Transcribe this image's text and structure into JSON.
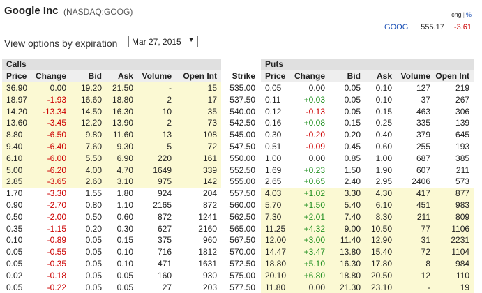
{
  "header": {
    "title": "Google Inc",
    "exchange_symbol": "(NASDAQ:GOOG)",
    "chg_label": "chg",
    "separator": "|",
    "pct_label": "%",
    "quote_symbol": "GOOG",
    "last_price": "555.17",
    "change": "-3.61"
  },
  "expiry": {
    "label": "View options by expiration",
    "selected": "Mar 27, 2015"
  },
  "table": {
    "calls_label": "Calls",
    "puts_label": "Puts",
    "columns": {
      "price": "Price",
      "change": "Change",
      "bid": "Bid",
      "ask": "Ask",
      "volume": "Volume",
      "open_int": "Open Int",
      "strike": "Strike"
    },
    "rows": [
      {
        "c_price": "36.90",
        "c_change": "0.00",
        "c_bid": "19.20",
        "c_ask": "21.50",
        "c_vol": "-",
        "c_oi": "15",
        "strike": "535.00",
        "p_price": "0.05",
        "p_change": "0.00",
        "p_bid": "0.05",
        "p_ask": "0.10",
        "p_vol": "127",
        "p_oi": "219"
      },
      {
        "c_price": "18.97",
        "c_change": "-1.93",
        "c_bid": "16.60",
        "c_ask": "18.80",
        "c_vol": "2",
        "c_oi": "17",
        "strike": "537.50",
        "p_price": "0.11",
        "p_change": "+0.03",
        "p_bid": "0.05",
        "p_ask": "0.10",
        "p_vol": "37",
        "p_oi": "267"
      },
      {
        "c_price": "14.20",
        "c_change": "-13.34",
        "c_bid": "14.50",
        "c_ask": "16.30",
        "c_vol": "10",
        "c_oi": "35",
        "strike": "540.00",
        "p_price": "0.12",
        "p_change": "-0.13",
        "p_bid": "0.05",
        "p_ask": "0.15",
        "p_vol": "463",
        "p_oi": "306"
      },
      {
        "c_price": "13.60",
        "c_change": "-3.45",
        "c_bid": "12.20",
        "c_ask": "13.90",
        "c_vol": "2",
        "c_oi": "73",
        "strike": "542.50",
        "p_price": "0.16",
        "p_change": "+0.08",
        "p_bid": "0.15",
        "p_ask": "0.25",
        "p_vol": "335",
        "p_oi": "139"
      },
      {
        "c_price": "8.80",
        "c_change": "-6.50",
        "c_bid": "9.80",
        "c_ask": "11.60",
        "c_vol": "13",
        "c_oi": "108",
        "strike": "545.00",
        "p_price": "0.30",
        "p_change": "-0.20",
        "p_bid": "0.20",
        "p_ask": "0.40",
        "p_vol": "379",
        "p_oi": "645"
      },
      {
        "c_price": "9.40",
        "c_change": "-6.40",
        "c_bid": "7.60",
        "c_ask": "9.30",
        "c_vol": "5",
        "c_oi": "72",
        "strike": "547.50",
        "p_price": "0.51",
        "p_change": "-0.09",
        "p_bid": "0.45",
        "p_ask": "0.60",
        "p_vol": "255",
        "p_oi": "193"
      },
      {
        "c_price": "6.10",
        "c_change": "-6.00",
        "c_bid": "5.50",
        "c_ask": "6.90",
        "c_vol": "220",
        "c_oi": "161",
        "strike": "550.00",
        "p_price": "1.00",
        "p_change": "0.00",
        "p_bid": "0.85",
        "p_ask": "1.00",
        "p_vol": "687",
        "p_oi": "385"
      },
      {
        "c_price": "5.00",
        "c_change": "-6.20",
        "c_bid": "4.00",
        "c_ask": "4.70",
        "c_vol": "1649",
        "c_oi": "339",
        "strike": "552.50",
        "p_price": "1.69",
        "p_change": "+0.23",
        "p_bid": "1.50",
        "p_ask": "1.90",
        "p_vol": "607",
        "p_oi": "211"
      },
      {
        "c_price": "2.85",
        "c_change": "-3.65",
        "c_bid": "2.60",
        "c_ask": "3.10",
        "c_vol": "975",
        "c_oi": "142",
        "strike": "555.00",
        "p_price": "2.65",
        "p_change": "+0.65",
        "p_bid": "2.40",
        "p_ask": "2.95",
        "p_vol": "2406",
        "p_oi": "573"
      },
      {
        "c_price": "1.70",
        "c_change": "-3.30",
        "c_bid": "1.55",
        "c_ask": "1.80",
        "c_vol": "924",
        "c_oi": "204",
        "strike": "557.50",
        "p_price": "4.03",
        "p_change": "+1.02",
        "p_bid": "3.30",
        "p_ask": "4.30",
        "p_vol": "417",
        "p_oi": "877"
      },
      {
        "c_price": "0.90",
        "c_change": "-2.70",
        "c_bid": "0.80",
        "c_ask": "1.10",
        "c_vol": "2165",
        "c_oi": "872",
        "strike": "560.00",
        "p_price": "5.70",
        "p_change": "+1.50",
        "p_bid": "5.40",
        "p_ask": "6.10",
        "p_vol": "451",
        "p_oi": "983"
      },
      {
        "c_price": "0.50",
        "c_change": "-2.00",
        "c_bid": "0.50",
        "c_ask": "0.60",
        "c_vol": "872",
        "c_oi": "1241",
        "strike": "562.50",
        "p_price": "7.30",
        "p_change": "+2.01",
        "p_bid": "7.40",
        "p_ask": "8.30",
        "p_vol": "211",
        "p_oi": "809"
      },
      {
        "c_price": "0.35",
        "c_change": "-1.15",
        "c_bid": "0.20",
        "c_ask": "0.30",
        "c_vol": "627",
        "c_oi": "2160",
        "strike": "565.00",
        "p_price": "11.25",
        "p_change": "+4.32",
        "p_bid": "9.00",
        "p_ask": "10.50",
        "p_vol": "77",
        "p_oi": "1106"
      },
      {
        "c_price": "0.10",
        "c_change": "-0.89",
        "c_bid": "0.05",
        "c_ask": "0.15",
        "c_vol": "375",
        "c_oi": "960",
        "strike": "567.50",
        "p_price": "12.00",
        "p_change": "+3.00",
        "p_bid": "11.40",
        "p_ask": "12.90",
        "p_vol": "31",
        "p_oi": "2231"
      },
      {
        "c_price": "0.05",
        "c_change": "-0.55",
        "c_bid": "0.05",
        "c_ask": "0.10",
        "c_vol": "716",
        "c_oi": "1812",
        "strike": "570.00",
        "p_price": "14.47",
        "p_change": "+3.47",
        "p_bid": "13.80",
        "p_ask": "15.40",
        "p_vol": "72",
        "p_oi": "1104"
      },
      {
        "c_price": "0.05",
        "c_change": "-0.35",
        "c_bid": "0.05",
        "c_ask": "0.10",
        "c_vol": "471",
        "c_oi": "1631",
        "strike": "572.50",
        "p_price": "18.80",
        "p_change": "+5.10",
        "p_bid": "16.30",
        "p_ask": "17.80",
        "p_vol": "8",
        "p_oi": "984"
      },
      {
        "c_price": "0.02",
        "c_change": "-0.18",
        "c_bid": "0.05",
        "c_ask": "0.05",
        "c_vol": "160",
        "c_oi": "930",
        "strike": "575.00",
        "p_price": "20.10",
        "p_change": "+6.80",
        "p_bid": "18.80",
        "p_ask": "20.50",
        "p_vol": "12",
        "p_oi": "110"
      },
      {
        "c_price": "0.05",
        "c_change": "-0.22",
        "c_bid": "0.05",
        "c_ask": "0.05",
        "c_vol": "27",
        "c_oi": "203",
        "strike": "577.50",
        "p_price": "11.80",
        "p_change": "0.00",
        "p_bid": "21.30",
        "p_ask": "23.10",
        "p_vol": "-",
        "p_oi": "19"
      }
    ]
  }
}
